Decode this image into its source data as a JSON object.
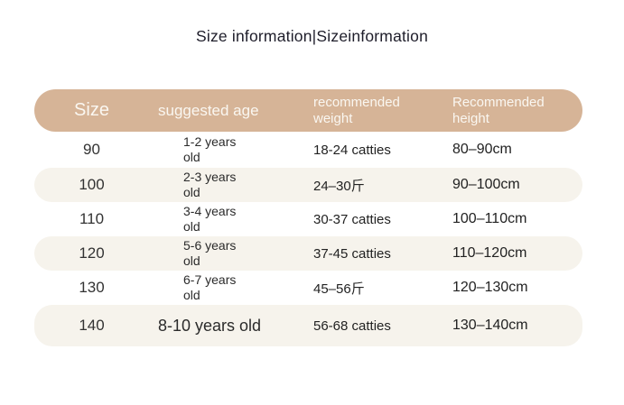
{
  "title": "Size information|Sizeinformation",
  "colors": {
    "header_background": "#d6b497",
    "header_text": "#faf7f1",
    "stripe_background": "#f6f3ec",
    "body_text": "#262626",
    "title_text": "#1e1d2a"
  },
  "table": {
    "headers": [
      "Size",
      "suggested age",
      "recommended weight",
      "Recommended height"
    ],
    "rows": [
      {
        "size": "90",
        "age": "1-2 years old",
        "weight": "18-24 catties",
        "height": "80–90cm"
      },
      {
        "size": "100",
        "age": "2-3 years old",
        "weight": "24–30斤",
        "height": "90–100cm"
      },
      {
        "size": "110",
        "age": "3-4 years old",
        "weight": "30-37 catties",
        "height": "100–110cm"
      },
      {
        "size": "120",
        "age": "5-6 years old",
        "weight": "37-45 catties",
        "height": "110–120cm"
      },
      {
        "size": "130",
        "age": "6-7 years old",
        "weight": "45–56斤",
        "height": "120–130cm"
      },
      {
        "size": "140",
        "age": "8-10 years old",
        "weight": "56-68 catties",
        "height": "130–140cm",
        "age_large": true
      }
    ]
  }
}
